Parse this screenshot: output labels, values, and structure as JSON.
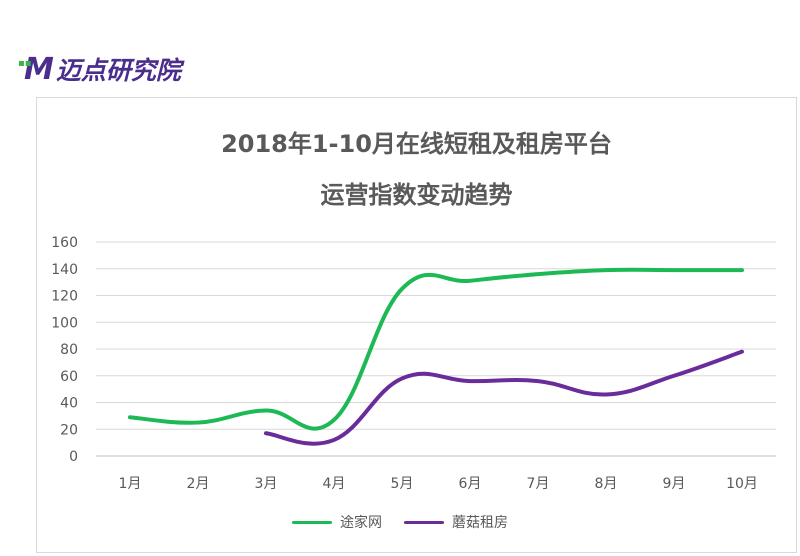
{
  "logo": {
    "mark": "M",
    "text": "迈点研究院"
  },
  "chart_data": {
    "type": "line",
    "title_line1": "2018年1-10月在线短租及租房平台",
    "title_line2": "运营指数变动趋势",
    "categories": [
      "1月",
      "2月",
      "3月",
      "4月",
      "5月",
      "6月",
      "7月",
      "8月",
      "9月",
      "10月"
    ],
    "ylim": [
      0,
      160
    ],
    "yticks": [
      0,
      20,
      40,
      60,
      80,
      100,
      120,
      140,
      160
    ],
    "grid": true,
    "legend_position": "bottom",
    "series": [
      {
        "name": "途家网",
        "color": "#1db954",
        "values": [
          29,
          25,
          34,
          27,
          125,
          131,
          136,
          139,
          139,
          139
        ]
      },
      {
        "name": "蘑菇租房",
        "color": "#6a2c9a",
        "values": [
          null,
          null,
          17,
          12,
          58,
          56,
          56,
          46,
          60,
          78
        ]
      }
    ]
  }
}
